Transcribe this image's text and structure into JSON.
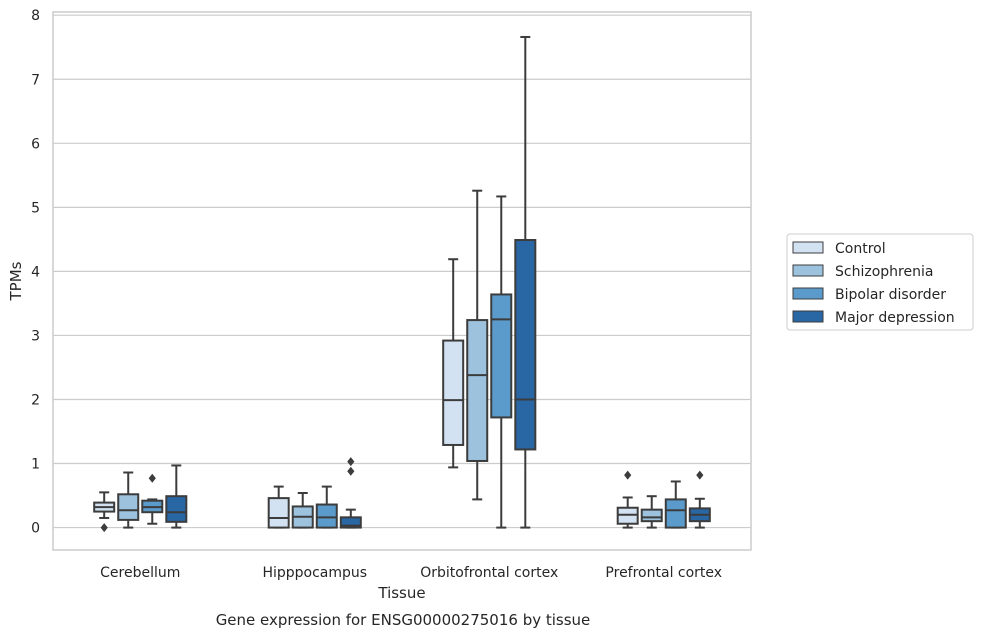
{
  "chart_data": {
    "type": "box",
    "title": "Gene expression for ENSG00000275016 by tissue",
    "xlabel": "Tissue",
    "ylabel": "TPMs",
    "ylim": [
      -0.35,
      8.05
    ],
    "yticks": [
      "0",
      "1",
      "2",
      "3",
      "4",
      "5",
      "6",
      "7",
      "8"
    ],
    "grid": "horizontal",
    "legend_position": "right",
    "categories": [
      "Cerebellum",
      "Hipppocampus",
      "Orbitofrontal cortex",
      "Prefrontal cortex"
    ],
    "series": [
      {
        "name": "Control",
        "color": "#d3e2f3",
        "boxes": [
          {
            "whisker_low": 0.15,
            "q1": 0.25,
            "median": 0.32,
            "q3": 0.39,
            "whisker_high": 0.55,
            "outliers": [
              0.0
            ]
          },
          {
            "whisker_low": 0.0,
            "q1": 0.0,
            "median": 0.15,
            "q3": 0.46,
            "whisker_high": 0.64,
            "outliers": []
          },
          {
            "whisker_low": 0.94,
            "q1": 1.29,
            "median": 1.99,
            "q3": 2.92,
            "whisker_high": 4.19,
            "outliers": []
          },
          {
            "whisker_low": 0.0,
            "q1": 0.06,
            "median": 0.2,
            "q3": 0.31,
            "whisker_high": 0.47,
            "outliers": [
              0.82
            ]
          }
        ]
      },
      {
        "name": "Schizophrenia",
        "color": "#9cc2de",
        "boxes": [
          {
            "whisker_low": 0.0,
            "q1": 0.12,
            "median": 0.27,
            "q3": 0.52,
            "whisker_high": 0.86,
            "outliers": []
          },
          {
            "whisker_low": 0.0,
            "q1": 0.0,
            "median": 0.17,
            "q3": 0.33,
            "whisker_high": 0.54,
            "outliers": []
          },
          {
            "whisker_low": 0.44,
            "q1": 1.04,
            "median": 2.38,
            "q3": 3.24,
            "whisker_high": 5.26,
            "outliers": []
          },
          {
            "whisker_low": 0.0,
            "q1": 0.1,
            "median": 0.16,
            "q3": 0.28,
            "whisker_high": 0.49,
            "outliers": []
          }
        ]
      },
      {
        "name": "Bipolar disorder",
        "color": "#5a9bcc",
        "boxes": [
          {
            "whisker_low": 0.06,
            "q1": 0.24,
            "median": 0.32,
            "q3": 0.42,
            "whisker_high": 0.44,
            "outliers": [
              0.77
            ]
          },
          {
            "whisker_low": 0.0,
            "q1": 0.0,
            "median": 0.16,
            "q3": 0.36,
            "whisker_high": 0.64,
            "outliers": []
          },
          {
            "whisker_low": 0.0,
            "q1": 1.72,
            "median": 3.25,
            "q3": 3.64,
            "whisker_high": 5.17,
            "outliers": []
          },
          {
            "whisker_low": 0.0,
            "q1": 0.0,
            "median": 0.27,
            "q3": 0.44,
            "whisker_high": 0.72,
            "outliers": []
          }
        ]
      },
      {
        "name": "Major depression",
        "color": "#2866a4",
        "boxes": [
          {
            "whisker_low": 0.0,
            "q1": 0.09,
            "median": 0.24,
            "q3": 0.49,
            "whisker_high": 0.97,
            "outliers": []
          },
          {
            "whisker_low": 0.0,
            "q1": 0.0,
            "median": 0.03,
            "q3": 0.16,
            "whisker_high": 0.28,
            "outliers": [
              0.88,
              1.03
            ]
          },
          {
            "whisker_low": 0.0,
            "q1": 1.22,
            "median": 2.0,
            "q3": 4.49,
            "whisker_high": 7.66,
            "outliers": []
          },
          {
            "whisker_low": 0.0,
            "q1": 0.1,
            "median": 0.2,
            "q3": 0.3,
            "whisker_high": 0.45,
            "outliers": [
              0.82
            ]
          }
        ]
      }
    ]
  }
}
